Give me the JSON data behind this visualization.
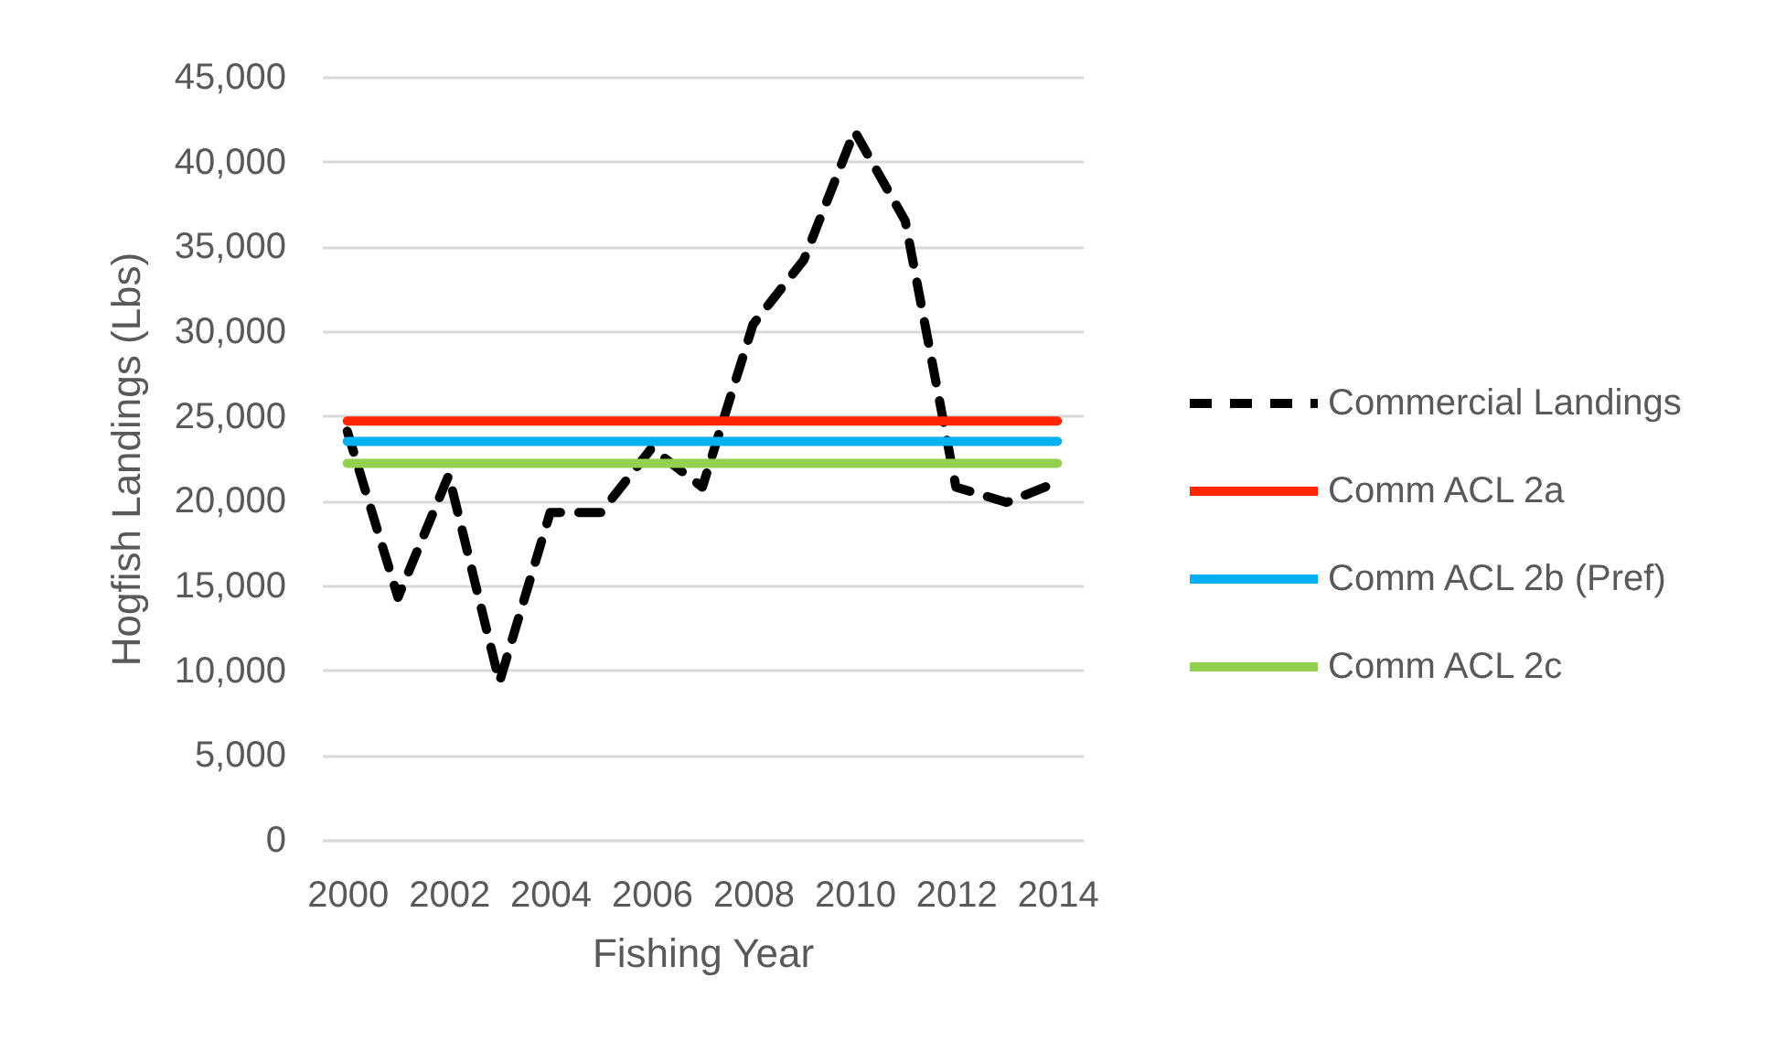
{
  "chart_data": {
    "type": "line",
    "xlabel": "Fishing Year",
    "ylabel": "Hogfish Landings (Lbs)",
    "x": [
      2000,
      2001,
      2002,
      2003,
      2004,
      2005,
      2006,
      2007,
      2008,
      2009,
      2010,
      2011,
      2012,
      2013,
      2014
    ],
    "series": [
      {
        "name": "Commercial Landings",
        "color": "#000000",
        "line_style": "dashed",
        "values": [
          24100,
          14300,
          21500,
          9300,
          19300,
          19300,
          23100,
          20800,
          30400,
          34200,
          41800,
          36500,
          20800,
          19900,
          21100
        ]
      },
      {
        "name": "Comm ACL 2a",
        "color": "#ff2600",
        "line_style": "solid",
        "values": [
          24700,
          24700,
          24700,
          24700,
          24700,
          24700,
          24700,
          24700,
          24700,
          24700,
          24700,
          24700,
          24700,
          24700,
          24700
        ]
      },
      {
        "name": "Comm ACL 2b (Pref)",
        "color": "#00b0f0",
        "line_style": "solid",
        "values": [
          23500,
          23500,
          23500,
          23500,
          23500,
          23500,
          23500,
          23500,
          23500,
          23500,
          23500,
          23500,
          23500,
          23500,
          23500
        ]
      },
      {
        "name": "Comm ACL 2c",
        "color": "#92d050",
        "line_style": "solid",
        "values": [
          22200,
          22200,
          22200,
          22200,
          22200,
          22200,
          22200,
          22200,
          22200,
          22200,
          22200,
          22200,
          22200,
          22200,
          22200
        ]
      }
    ],
    "xlim": [
      1999.5,
      2014.5
    ],
    "xticks": [
      2000,
      2002,
      2004,
      2006,
      2008,
      2010,
      2012,
      2014
    ],
    "ylim": [
      0,
      45000
    ],
    "yticks": [
      0,
      {
        "value": 5000,
        "label": "5,000"
      },
      {
        "value": 10000,
        "label": "10,000"
      },
      {
        "value": 15000,
        "label": "15,000"
      },
      {
        "value": 20000,
        "label": "20,000"
      },
      {
        "value": 25000,
        "label": "25,000"
      },
      {
        "value": 30000,
        "label": "30,000"
      },
      {
        "value": 35000,
        "label": "35,000"
      },
      {
        "value": 40000,
        "label": "40,000"
      },
      {
        "value": 45000,
        "label": "45,000"
      }
    ],
    "grid": "y",
    "legend": "right"
  }
}
